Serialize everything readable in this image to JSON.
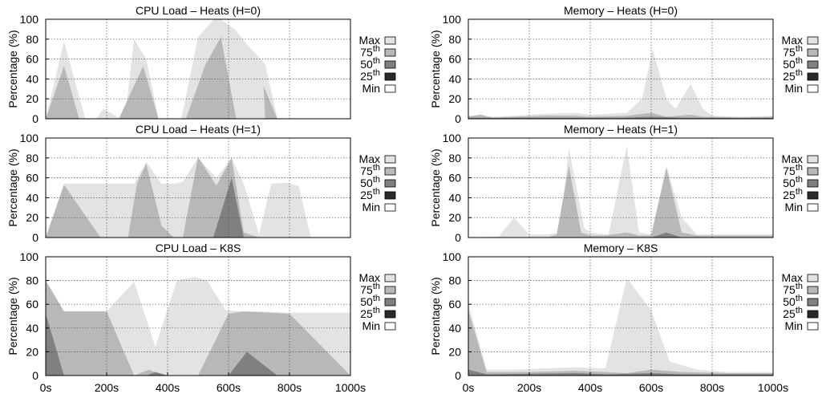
{
  "legend": {
    "items": [
      {
        "label": "Max",
        "sup": "",
        "color": "#e3e3e3"
      },
      {
        "label": "75",
        "sup": "th",
        "color": "#b8b8b8"
      },
      {
        "label": "50",
        "sup": "th",
        "color": "#808080"
      },
      {
        "label": "25",
        "sup": "th",
        "color": "#2a2a2a"
      },
      {
        "label": "Min",
        "sup": "",
        "color": "#ffffff"
      }
    ]
  },
  "chart_data": [
    {
      "type": "area",
      "title": "CPU Load – Heats (H=0)",
      "ylabel": "Percentage (%)",
      "xlabel": "",
      "ylim": [
        0,
        100
      ],
      "xlim": [
        0,
        1000
      ],
      "yticks": [
        "0",
        "20",
        "40",
        "60",
        "80",
        "100"
      ],
      "xticks": [],
      "grid": true,
      "legend_position": "right",
      "series": [
        {
          "name": "Max",
          "points": [
            [
              0,
              0
            ],
            [
              60,
              78
            ],
            [
              130,
              0
            ],
            [
              165,
              0
            ],
            [
              190,
              10
            ],
            [
              245,
              0
            ],
            [
              260,
              0
            ],
            [
              290,
              80
            ],
            [
              330,
              60
            ],
            [
              370,
              0
            ],
            [
              420,
              0
            ],
            [
              445,
              0
            ],
            [
              500,
              82
            ],
            [
              560,
              103
            ],
            [
              620,
              90
            ],
            [
              660,
              75
            ],
            [
              720,
              55
            ],
            [
              760,
              0
            ]
          ]
        },
        {
          "name": "75th",
          "points": [
            [
              0,
              0
            ],
            [
              60,
              53
            ],
            [
              110,
              0
            ],
            [
              240,
              0
            ],
            [
              320,
              53
            ],
            [
              370,
              0
            ],
            [
              460,
              0
            ],
            [
              525,
              55
            ],
            [
              575,
              82
            ],
            [
              625,
              0
            ],
            [
              720,
              0
            ],
            [
              715,
              33
            ],
            [
              760,
              0
            ]
          ]
        },
        {
          "name": "50th",
          "points": []
        },
        {
          "name": "25th",
          "points": []
        },
        {
          "name": "Min",
          "points": []
        }
      ]
    },
    {
      "type": "area",
      "title": "Memory – Heats (H=0)",
      "ylabel": "Percentage (%)",
      "xlabel": "",
      "ylim": [
        0,
        100
      ],
      "xlim": [
        0,
        1000
      ],
      "yticks": [
        "0",
        "20",
        "40",
        "60",
        "80",
        "100"
      ],
      "xticks": [],
      "grid": true,
      "legend_position": "right",
      "series": [
        {
          "name": "Max",
          "points": [
            [
              0,
              3
            ],
            [
              40,
              4
            ],
            [
              80,
              2
            ],
            [
              150,
              3
            ],
            [
              250,
              5
            ],
            [
              350,
              6
            ],
            [
              400,
              4
            ],
            [
              520,
              6
            ],
            [
              570,
              20
            ],
            [
              605,
              70
            ],
            [
              650,
              20
            ],
            [
              680,
              10
            ],
            [
              730,
              35
            ],
            [
              770,
              10
            ],
            [
              800,
              3
            ],
            [
              900,
              2
            ],
            [
              1000,
              3
            ]
          ]
        },
        {
          "name": "75th",
          "points": [
            [
              0,
              2
            ],
            [
              40,
              4
            ],
            [
              80,
              1
            ],
            [
              150,
              2
            ],
            [
              250,
              3
            ],
            [
              350,
              3
            ],
            [
              400,
              2
            ],
            [
              520,
              3
            ],
            [
              600,
              6
            ],
            [
              650,
              2
            ],
            [
              730,
              4
            ],
            [
              770,
              2
            ],
            [
              800,
              2
            ],
            [
              900,
              1
            ],
            [
              1000,
              2
            ]
          ]
        },
        {
          "name": "50th",
          "points": [
            [
              0,
              1
            ],
            [
              100,
              1
            ],
            [
              300,
              1
            ],
            [
              500,
              1
            ],
            [
              600,
              2
            ],
            [
              700,
              1
            ],
            [
              1000,
              1
            ]
          ]
        },
        {
          "name": "25th",
          "points": []
        },
        {
          "name": "Min",
          "points": []
        }
      ]
    },
    {
      "type": "area",
      "title": "CPU Load – Heats (H=1)",
      "ylabel": "Percentage (%)",
      "xlabel": "",
      "ylim": [
        0,
        100
      ],
      "xlim": [
        0,
        1000
      ],
      "yticks": [
        "0",
        "20",
        "40",
        "60",
        "80",
        "100"
      ],
      "xticks": [],
      "grid": true,
      "legend_position": "right",
      "series": [
        {
          "name": "Max",
          "points": [
            [
              0,
              0
            ],
            [
              60,
              54
            ],
            [
              200,
              54
            ],
            [
              290,
              54
            ],
            [
              330,
              76
            ],
            [
              380,
              54
            ],
            [
              420,
              54
            ],
            [
              450,
              56
            ],
            [
              500,
              80
            ],
            [
              560,
              60
            ],
            [
              610,
              80
            ],
            [
              650,
              54
            ],
            [
              700,
              3
            ],
            [
              740,
              54
            ],
            [
              790,
              55
            ],
            [
              830,
              52
            ],
            [
              870,
              0
            ]
          ]
        },
        {
          "name": "75th",
          "points": [
            [
              0,
              0
            ],
            [
              60,
              53
            ],
            [
              180,
              0
            ],
            [
              270,
              0
            ],
            [
              300,
              55
            ],
            [
              330,
              74
            ],
            [
              380,
              12
            ],
            [
              420,
              0
            ],
            [
              450,
              0
            ],
            [
              500,
              81
            ],
            [
              560,
              52
            ],
            [
              610,
              80
            ],
            [
              650,
              5
            ],
            [
              700,
              0
            ]
          ]
        },
        {
          "name": "50th",
          "points": [
            [
              0,
              0
            ],
            [
              550,
              0
            ],
            [
              610,
              60
            ],
            [
              650,
              0
            ],
            [
              1000,
              0
            ]
          ]
        },
        {
          "name": "25th",
          "points": []
        },
        {
          "name": "Min",
          "points": []
        }
      ]
    },
    {
      "type": "area",
      "title": "Memory – Heats (H=1)",
      "ylabel": "Percentage (%)",
      "xlabel": "",
      "ylim": [
        0,
        100
      ],
      "xlim": [
        0,
        1000
      ],
      "yticks": [
        "0",
        "20",
        "40",
        "60",
        "80",
        "100"
      ],
      "xticks": [],
      "grid": true,
      "legend_position": "right",
      "series": [
        {
          "name": "Max",
          "points": [
            [
              0,
              0
            ],
            [
              100,
              1
            ],
            [
              150,
              20
            ],
            [
              200,
              3
            ],
            [
              260,
              3
            ],
            [
              300,
              5
            ],
            [
              330,
              90
            ],
            [
              380,
              10
            ],
            [
              400,
              5
            ],
            [
              460,
              3
            ],
            [
              520,
              92
            ],
            [
              560,
              5
            ],
            [
              600,
              3
            ],
            [
              650,
              72
            ],
            [
              700,
              20
            ],
            [
              750,
              3
            ],
            [
              850,
              3
            ],
            [
              950,
              3
            ],
            [
              1000,
              3
            ]
          ]
        },
        {
          "name": "75th",
          "points": [
            [
              0,
              0
            ],
            [
              260,
              0
            ],
            [
              290,
              3
            ],
            [
              330,
              72
            ],
            [
              370,
              5
            ],
            [
              400,
              2
            ],
            [
              450,
              2
            ],
            [
              520,
              5
            ],
            [
              560,
              2
            ],
            [
              600,
              2
            ],
            [
              650,
              70
            ],
            [
              700,
              5
            ],
            [
              750,
              2
            ],
            [
              850,
              2
            ],
            [
              1000,
              2
            ]
          ]
        },
        {
          "name": "50th",
          "points": [
            [
              0,
              0
            ],
            [
              600,
              0
            ],
            [
              650,
              5
            ],
            [
              700,
              0
            ],
            [
              1000,
              0
            ]
          ]
        },
        {
          "name": "25th",
          "points": []
        },
        {
          "name": "Min",
          "points": []
        }
      ]
    },
    {
      "type": "area",
      "title": "CPU Load – K8S",
      "ylabel": "Percentage (%)",
      "xlabel": "",
      "ylim": [
        0,
        100
      ],
      "xlim": [
        0,
        1000
      ],
      "yticks": [
        "0",
        "20",
        "40",
        "60",
        "80",
        "100"
      ],
      "xticks": [
        "0s",
        "200s",
        "400s",
        "600s",
        "800s",
        "1000s"
      ],
      "grid": true,
      "legend_position": "right",
      "series": [
        {
          "name": "Max",
          "points": [
            [
              0,
              80
            ],
            [
              60,
              54
            ],
            [
              200,
              54
            ],
            [
              290,
              79
            ],
            [
              360,
              24
            ],
            [
              430,
              80
            ],
            [
              490,
              83
            ],
            [
              530,
              80
            ],
            [
              590,
              55
            ],
            [
              650,
              54
            ],
            [
              700,
              54
            ],
            [
              800,
              53
            ],
            [
              1000,
              53
            ]
          ]
        },
        {
          "name": "75th",
          "points": [
            [
              0,
              80
            ],
            [
              60,
              54
            ],
            [
              200,
              54
            ],
            [
              290,
              0
            ],
            [
              340,
              5
            ],
            [
              380,
              0
            ],
            [
              500,
              0
            ],
            [
              600,
              52
            ],
            [
              650,
              54
            ],
            [
              800,
              52
            ],
            [
              1000,
              0
            ]
          ]
        },
        {
          "name": "50th",
          "points": [
            [
              0,
              52
            ],
            [
              60,
              0
            ],
            [
              330,
              0
            ],
            [
              360,
              3
            ],
            [
              400,
              0
            ],
            [
              600,
              0
            ],
            [
              660,
              20
            ],
            [
              760,
              0
            ],
            [
              1000,
              0
            ]
          ]
        },
        {
          "name": "25th",
          "points": []
        },
        {
          "name": "Min",
          "points": []
        }
      ]
    },
    {
      "type": "area",
      "title": "Memory – K8S",
      "ylabel": "Percentage (%)",
      "xlabel": "",
      "ylim": [
        0,
        100
      ],
      "xlim": [
        0,
        1000
      ],
      "yticks": [
        "0",
        "20",
        "40",
        "60",
        "80",
        "100"
      ],
      "xticks": [
        "0s",
        "200s",
        "400s",
        "600s",
        "800s",
        "1000s"
      ],
      "grid": true,
      "legend_position": "right",
      "series": [
        {
          "name": "Max",
          "points": [
            [
              0,
              60
            ],
            [
              60,
              5
            ],
            [
              150,
              5
            ],
            [
              250,
              6
            ],
            [
              350,
              7
            ],
            [
              450,
              6
            ],
            [
              520,
              82
            ],
            [
              600,
              55
            ],
            [
              660,
              12
            ],
            [
              750,
              5
            ],
            [
              850,
              3
            ],
            [
              1000,
              3
            ]
          ]
        },
        {
          "name": "75th",
          "points": [
            [
              0,
              55
            ],
            [
              60,
              3
            ],
            [
              200,
              3
            ],
            [
              350,
              4
            ],
            [
              450,
              3
            ],
            [
              520,
              2
            ],
            [
              600,
              5
            ],
            [
              700,
              3
            ],
            [
              850,
              2
            ],
            [
              1000,
              2
            ]
          ]
        },
        {
          "name": "50th",
          "points": [
            [
              0,
              5
            ],
            [
              60,
              1
            ],
            [
              350,
              2
            ],
            [
              450,
              1
            ],
            [
              600,
              2
            ],
            [
              700,
              1
            ],
            [
              1000,
              1
            ]
          ]
        },
        {
          "name": "25th",
          "points": []
        },
        {
          "name": "Min",
          "points": []
        }
      ]
    }
  ]
}
